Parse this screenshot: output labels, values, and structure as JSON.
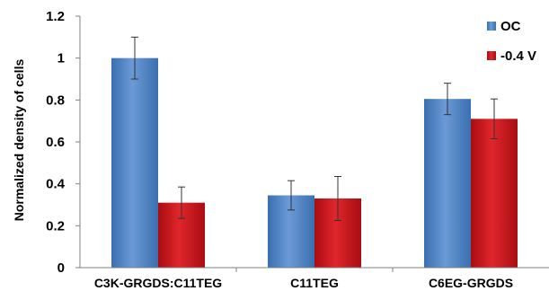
{
  "chart_data": {
    "type": "bar",
    "ylabel": "Normalized density of cells",
    "ylim": [
      0,
      1.2
    ],
    "yticks": [
      "0",
      "0.2",
      "0.4",
      "0.6",
      "0.8",
      "1",
      "1.2"
    ],
    "categories": [
      "C3K-GRGDS:C11TEG",
      "C11TEG",
      "C6EG-GRGDS"
    ],
    "series": [
      {
        "name": "OC",
        "color": "#4f81bd",
        "values": [
          1.0,
          0.345,
          0.805
        ],
        "errors": [
          0.1,
          0.07,
          0.075
        ]
      },
      {
        "name": "-0.4 V",
        "color": "#c0141a",
        "values": [
          0.31,
          0.33,
          0.71
        ],
        "errors": [
          0.075,
          0.105,
          0.095
        ]
      }
    ],
    "legend_position": "top-right",
    "error_bars": true,
    "grid": false
  }
}
